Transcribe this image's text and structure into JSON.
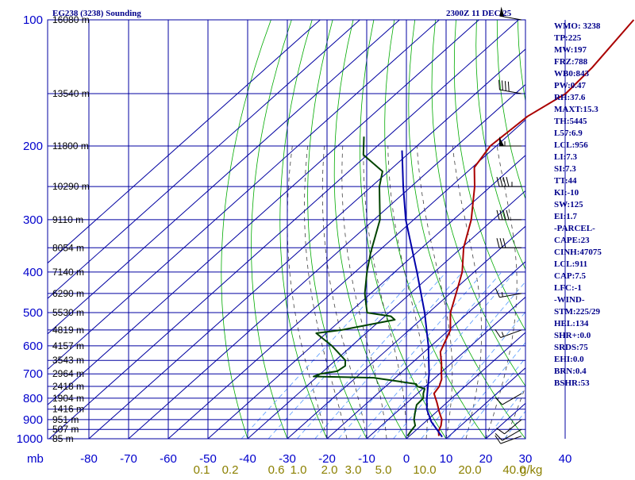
{
  "header": {
    "title": "EG238 (3238) Sounding",
    "time": "2300Z 11 DEC 25"
  },
  "indices": [
    "WMO: 3238",
    "TP:225",
    "MW:197",
    "FRZ:788",
    "WB0:843",
    "PW:0.47",
    "RH:37.6",
    "MAXT:15.3",
    "TH:5445",
    "L57:6.9",
    "LCL:956",
    "LI:7.3",
    "SI:7.3",
    "TT:44",
    "KI:-10",
    "SW:125",
    "EI:1.7",
    "-PARCEL-",
    "CAPE:23",
    "CINH:47075",
    "LCL:911",
    "CAP:7.5",
    "LFC:-1",
    "-WIND-",
    "STM:225/29",
    "HEL:134",
    "SHR+:0.0",
    "SRDS:75",
    "EHI:0.0",
    "BRN:0.4",
    "BSHR:53"
  ],
  "colors": {
    "grid": "#0000a0",
    "dry_adiabat": "#00aa00",
    "moist_adiabat": "#404040",
    "mixing_ratio": "#5599ff",
    "temperature": "#aa0000",
    "dewpoint": "#004400",
    "parcel": "#0000aa",
    "header_text": "#00008b",
    "mixing_label": "#8b8000"
  },
  "chart_data": {
    "type": "line",
    "chart_kind": "skew-T log-P sounding",
    "y_axis": {
      "scale": "log",
      "unit_label": "mb",
      "range": [
        1000,
        100
      ],
      "pressure_ticks": [
        1000,
        900,
        800,
        700,
        600,
        500,
        400,
        300,
        200,
        100
      ],
      "pressure_tick_labels": [
        "1000",
        "900",
        "800",
        "700",
        "600",
        "500",
        "400",
        "300",
        "200",
        "100"
      ]
    },
    "x_axis": {
      "temperature_ticks": [
        -80,
        -70,
        -60,
        -50,
        -40,
        -30,
        -20,
        -10,
        0,
        10,
        20,
        30,
        40
      ],
      "temperature_tick_labels": [
        "-80",
        "-70",
        "-60",
        "-50",
        "-40",
        "-30",
        "-20",
        "-10",
        "0",
        "10",
        "20",
        "30",
        "40"
      ]
    },
    "height_labels": [
      {
        "p": 100,
        "label": "16080 m"
      },
      {
        "p": 150,
        "label": "13540 m"
      },
      {
        "p": 200,
        "label": "11800 m"
      },
      {
        "p": 250,
        "label": "10290 m"
      },
      {
        "p": 300,
        "label": "9110 m"
      },
      {
        "p": 350,
        "label": "8054 m"
      },
      {
        "p": 400,
        "label": "7140 m"
      },
      {
        "p": 450,
        "label": "6290 m"
      },
      {
        "p": 500,
        "label": "5530 m"
      },
      {
        "p": 550,
        "label": "4819 m"
      },
      {
        "p": 600,
        "label": "4157 m"
      },
      {
        "p": 650,
        "label": "3543 m"
      },
      {
        "p": 700,
        "label": "2964 m"
      },
      {
        "p": 750,
        "label": "2418 m"
      },
      {
        "p": 800,
        "label": "1904 m"
      },
      {
        "p": 850,
        "label": "1416 m"
      },
      {
        "p": 900,
        "label": "951 m"
      },
      {
        "p": 950,
        "label": "507 m"
      },
      {
        "p": 1000,
        "label": "85 m"
      }
    ],
    "mixing_ratio_labels": [
      "0.1",
      "0.2",
      "0.6",
      "1.0",
      "2.0",
      "3.0",
      "5.0",
      "10.0",
      "20.0",
      "40.0"
    ],
    "mixing_ratio_unit": "g/kg",
    "series": [
      {
        "key": "temperature",
        "points": [
          {
            "p": 985,
            "t": 7.4
          },
          {
            "p": 960,
            "t": 6.0
          },
          {
            "p": 930,
            "t": 5.0
          },
          {
            "p": 900,
            "t": 3.5
          },
          {
            "p": 860,
            "t": 0.5
          },
          {
            "p": 820,
            "t": -2.5
          },
          {
            "p": 780,
            "t": -5.8
          },
          {
            "p": 750,
            "t": -6.5
          },
          {
            "p": 720,
            "t": -8.0
          },
          {
            "p": 700,
            "t": -9.5
          },
          {
            "p": 660,
            "t": -12.5
          },
          {
            "p": 620,
            "t": -16.0
          },
          {
            "p": 580,
            "t": -18.0
          },
          {
            "p": 550,
            "t": -19.6
          },
          {
            "p": 520,
            "t": -22.5
          },
          {
            "p": 500,
            "t": -24.5
          },
          {
            "p": 450,
            "t": -28.5
          },
          {
            "p": 400,
            "t": -33.0
          },
          {
            "p": 350,
            "t": -39.5
          },
          {
            "p": 300,
            "t": -45.5
          },
          {
            "p": 250,
            "t": -54.0
          },
          {
            "p": 225,
            "t": -59.5
          },
          {
            "p": 200,
            "t": -61.5
          },
          {
            "p": 170,
            "t": -60.5
          },
          {
            "p": 150,
            "t": -57.3
          },
          {
            "p": 130,
            "t": -58.0
          },
          {
            "p": 100,
            "t": -61.0
          }
        ]
      },
      {
        "key": "dewpoint",
        "points": [
          {
            "p": 985,
            "t": -0.5
          },
          {
            "p": 960,
            "t": -1.0
          },
          {
            "p": 930,
            "t": -1.5
          },
          {
            "p": 900,
            "t": -3.5
          },
          {
            "p": 860,
            "t": -5.5
          },
          {
            "p": 830,
            "t": -7.0
          },
          {
            "p": 800,
            "t": -7.2
          },
          {
            "p": 780,
            "t": -8.5
          },
          {
            "p": 760,
            "t": -9.5
          },
          {
            "p": 750,
            "t": -12.0
          },
          {
            "p": 740,
            "t": -13.0
          },
          {
            "p": 730,
            "t": -18.0
          },
          {
            "p": 715,
            "t": -25.5
          },
          {
            "p": 710,
            "t": -41.0
          },
          {
            "p": 700,
            "t": -40.0
          },
          {
            "p": 690,
            "t": -36.5
          },
          {
            "p": 670,
            "t": -36.0
          },
          {
            "p": 650,
            "t": -37.5
          },
          {
            "p": 600,
            "t": -45.0
          },
          {
            "p": 560,
            "t": -52.5
          },
          {
            "p": 550,
            "t": -47.0
          },
          {
            "p": 520,
            "t": -36.5
          },
          {
            "p": 510,
            "t": -38.5
          },
          {
            "p": 500,
            "t": -45.5
          },
          {
            "p": 450,
            "t": -51.5
          },
          {
            "p": 400,
            "t": -57.0
          },
          {
            "p": 360,
            "t": -61.5
          },
          {
            "p": 300,
            "t": -68.5
          },
          {
            "p": 250,
            "t": -78.0
          },
          {
            "p": 230,
            "t": -81.5
          },
          {
            "p": 210,
            "t": -91.0
          },
          {
            "p": 190,
            "t": -96.0
          }
        ]
      },
      {
        "key": "parcel",
        "points": [
          {
            "p": 990,
            "t": 8.5
          },
          {
            "p": 911,
            "t": 1.5
          },
          {
            "p": 850,
            "t": -3.2
          },
          {
            "p": 800,
            "t": -6.3
          },
          {
            "p": 700,
            "t": -12.6
          },
          {
            "p": 600,
            "t": -20.7
          },
          {
            "p": 500,
            "t": -31.0
          },
          {
            "p": 400,
            "t": -44.4
          },
          {
            "p": 300,
            "t": -62.0
          },
          {
            "p": 250,
            "t": -72.0
          },
          {
            "p": 205,
            "t": -82.5
          }
        ]
      }
    ],
    "wind_barbs": [
      {
        "p": 100,
        "dir": 280,
        "spd_kt": 50
      },
      {
        "p": 150,
        "dir": 280,
        "spd_kt": 40
      },
      {
        "p": 200,
        "dir": 270,
        "spd_kt": 55
      },
      {
        "p": 250,
        "dir": 270,
        "spd_kt": 45
      },
      {
        "p": 300,
        "dir": 270,
        "spd_kt": 40
      },
      {
        "p": 350,
        "dir": 270,
        "spd_kt": 30
      },
      {
        "p": 450,
        "dir": 260,
        "spd_kt": 15
      },
      {
        "p": 550,
        "dir": 250,
        "spd_kt": 15
      },
      {
        "p": 780,
        "dir": 240,
        "spd_kt": 10
      },
      {
        "p": 900,
        "dir": 230,
        "spd_kt": 10
      },
      {
        "p": 950,
        "dir": 240,
        "spd_kt": 10
      },
      {
        "p": 985,
        "dir": 250,
        "spd_kt": 10
      }
    ]
  }
}
